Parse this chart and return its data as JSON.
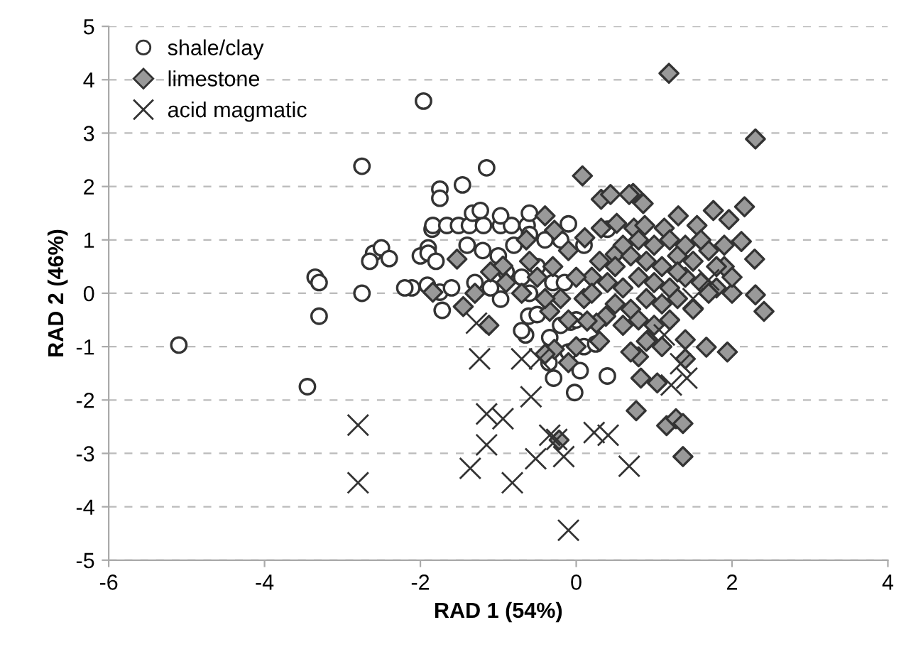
{
  "chart_data": {
    "type": "scatter",
    "xlabel": "RAD 1 (54%)",
    "ylabel": "RAD 2 (46%)",
    "xlim": [
      -6,
      4
    ],
    "xticks": [
      -6,
      -4,
      -2,
      0,
      2,
      4
    ],
    "ylim": [
      -5,
      5
    ],
    "yticks": [
      -5,
      -4,
      -3,
      -2,
      -1,
      0,
      1,
      2,
      3,
      4,
      5
    ],
    "grid": "y",
    "legend": "top left",
    "series": [
      {
        "name": "shale/clay",
        "color": "#ffffff",
        "marker": "circle",
        "x": [
          -5.1,
          -3.45,
          -3.35,
          -3.3,
          -3.3,
          -2.75,
          -2.75,
          -1.96,
          -2.6,
          -2.65,
          -2.5,
          -2.4,
          -2.11,
          -2.0,
          -1.9,
          -1.85,
          -1.75,
          -1.75,
          -1.46,
          -1.15,
          -1.84,
          -1.66,
          -1.51,
          -1.37,
          -1.19,
          -0.97,
          -0.83,
          -0.63,
          -1.33,
          -1.23,
          -0.97,
          -0.6,
          -1.9,
          -1.8,
          -1.91,
          -1.75,
          -1.72,
          -1.6,
          -1.4,
          -1.2,
          -1.0,
          -0.8,
          -0.6,
          -0.4,
          -0.2,
          -0.1,
          0.1,
          -0.9,
          -0.7,
          -0.5,
          -0.3,
          -0.97,
          -0.61,
          -0.65,
          -0.34,
          -0.29,
          -0.02,
          0.05,
          -0.07,
          0.0,
          -0.5,
          -0.2,
          -0.1,
          0.1,
          0.25,
          0.4,
          -0.35,
          -0.7,
          -0.6,
          -1.1,
          -1.3,
          -0.15,
          0.4,
          -2.2
        ],
        "values": [
          -0.97,
          -1.75,
          0.3,
          0.2,
          -0.43,
          2.38,
          0.0,
          3.6,
          0.75,
          0.6,
          0.85,
          0.65,
          0.1,
          0.7,
          0.85,
          1.2,
          1.95,
          1.78,
          2.03,
          2.35,
          1.27,
          1.27,
          1.27,
          1.27,
          1.27,
          1.27,
          1.27,
          1.27,
          1.5,
          1.55,
          1.45,
          1.5,
          0.75,
          0.6,
          0.15,
          0.02,
          -0.32,
          0.1,
          0.9,
          0.8,
          0.7,
          0.9,
          1.1,
          1.0,
          1.0,
          1.3,
          0.9,
          0.4,
          0.3,
          0.5,
          0.2,
          -0.11,
          -0.43,
          -0.78,
          -0.83,
          -1.59,
          -1.86,
          -1.45,
          -0.54,
          -0.5,
          -0.4,
          -0.6,
          -1.1,
          -1.0,
          -0.95,
          -1.55,
          -1.3,
          -0.7,
          0.0,
          0.1,
          0.2,
          0.2,
          1.2,
          0.1
        ]
      },
      {
        "name": "limestone",
        "color": "#999999",
        "marker": "diamond",
        "x": [
          1.19,
          2.3,
          0.73,
          0.86,
          1.76,
          1.96,
          2.16,
          2.12,
          2.29,
          1.55,
          1.31,
          1.13,
          0.74,
          0.88,
          2.3,
          2.41,
          1.94,
          1.67,
          1.4,
          0.77,
          1.16,
          1.28,
          1.37,
          1.37,
          0.83,
          1.04,
          0.8,
          1.4,
          0.92,
          0.08,
          0.32,
          0.44,
          0.68,
          -0.4,
          -0.64,
          -1.53,
          0.32,
          0.52,
          0.11,
          -0.28,
          -0.94,
          0.5,
          -1.12,
          -1.45,
          -1.84,
          -0.34,
          0.38,
          0.26,
          0.14,
          -0.28,
          -0.4,
          -0.22,
          0.2,
          0.4,
          0.6,
          0.8,
          1.0,
          1.2,
          1.4,
          1.6,
          1.8,
          2.0,
          0.3,
          0.5,
          0.7,
          0.9,
          1.1,
          1.3,
          1.5,
          1.7,
          1.9,
          0.6,
          0.8,
          1.0,
          1.2,
          1.4,
          1.6,
          1.9,
          0.1,
          0.5,
          0.7,
          0.9,
          1.1,
          1.3,
          1.5,
          1.7,
          0.6,
          0.8,
          1.0,
          1.2,
          0.9,
          0.7,
          1.1,
          -0.9,
          -0.7,
          -0.5,
          -0.3,
          -0.1,
          -1.1,
          -0.6,
          -0.2,
          0.0,
          -0.4,
          -1.3,
          -0.1,
          0.3,
          0.0,
          -0.1,
          0.2,
          1.8,
          2.0,
          1.3
        ],
        "values": [
          4.12,
          2.89,
          1.87,
          1.68,
          1.55,
          1.38,
          1.62,
          0.97,
          0.64,
          1.27,
          1.45,
          1.22,
          1.22,
          1.27,
          -0.03,
          -0.34,
          -1.1,
          -1.01,
          -0.87,
          -2.2,
          -2.48,
          -2.35,
          -2.44,
          -3.06,
          -1.59,
          -1.68,
          -1.19,
          -1.23,
          -0.87,
          2.2,
          1.76,
          1.85,
          1.85,
          1.45,
          1.0,
          0.64,
          1.22,
          1.31,
          1.04,
          1.18,
          0.51,
          0.73,
          -0.6,
          -0.25,
          0.02,
          -0.34,
          -0.43,
          -0.56,
          -0.52,
          -1.05,
          -1.14,
          -2.75,
          0.3,
          0.2,
          0.1,
          0.3,
          0.2,
          0.1,
          0.3,
          0.2,
          0.1,
          0.0,
          0.6,
          0.5,
          0.7,
          0.6,
          0.5,
          0.7,
          0.6,
          0.8,
          0.5,
          0.9,
          1.0,
          0.9,
          1.0,
          0.9,
          1.0,
          0.9,
          -0.1,
          -0.2,
          -0.3,
          -0.1,
          -0.2,
          -0.1,
          -0.3,
          0.0,
          -0.6,
          -0.5,
          -0.6,
          -0.5,
          -0.9,
          -1.1,
          -1.0,
          0.2,
          0.0,
          0.3,
          0.5,
          0.8,
          0.4,
          0.6,
          -0.1,
          0.3,
          -0.1,
          0.0,
          -0.5,
          -0.9,
          -1.0,
          -1.3,
          0.0,
          0.5,
          0.3,
          0.4
        ]
      },
      {
        "name": "acid magmatic",
        "color": "#333333",
        "marker": "cross",
        "x": [
          -1.24,
          -0.7,
          -0.47,
          -0.58,
          -1.15,
          -0.94,
          -0.34,
          -0.25,
          0.23,
          0.41,
          -1.15,
          -0.52,
          -0.16,
          -1.36,
          -0.82,
          -0.1,
          -2.8,
          -2.8,
          -1.28,
          0.68,
          1.13,
          1.22,
          1.42,
          1.34,
          1.7,
          1.5
        ],
        "values": [
          -1.23,
          -1.23,
          -1.23,
          -1.94,
          -2.26,
          -2.35,
          -2.66,
          -2.74,
          -2.61,
          -2.66,
          -2.84,
          -3.1,
          -3.06,
          -3.28,
          -3.55,
          -4.44,
          -2.47,
          -3.55,
          -0.56,
          -3.24,
          -0.78,
          -1.72,
          -1.59,
          -1.32,
          0.25,
          -0.1
        ]
      }
    ]
  }
}
